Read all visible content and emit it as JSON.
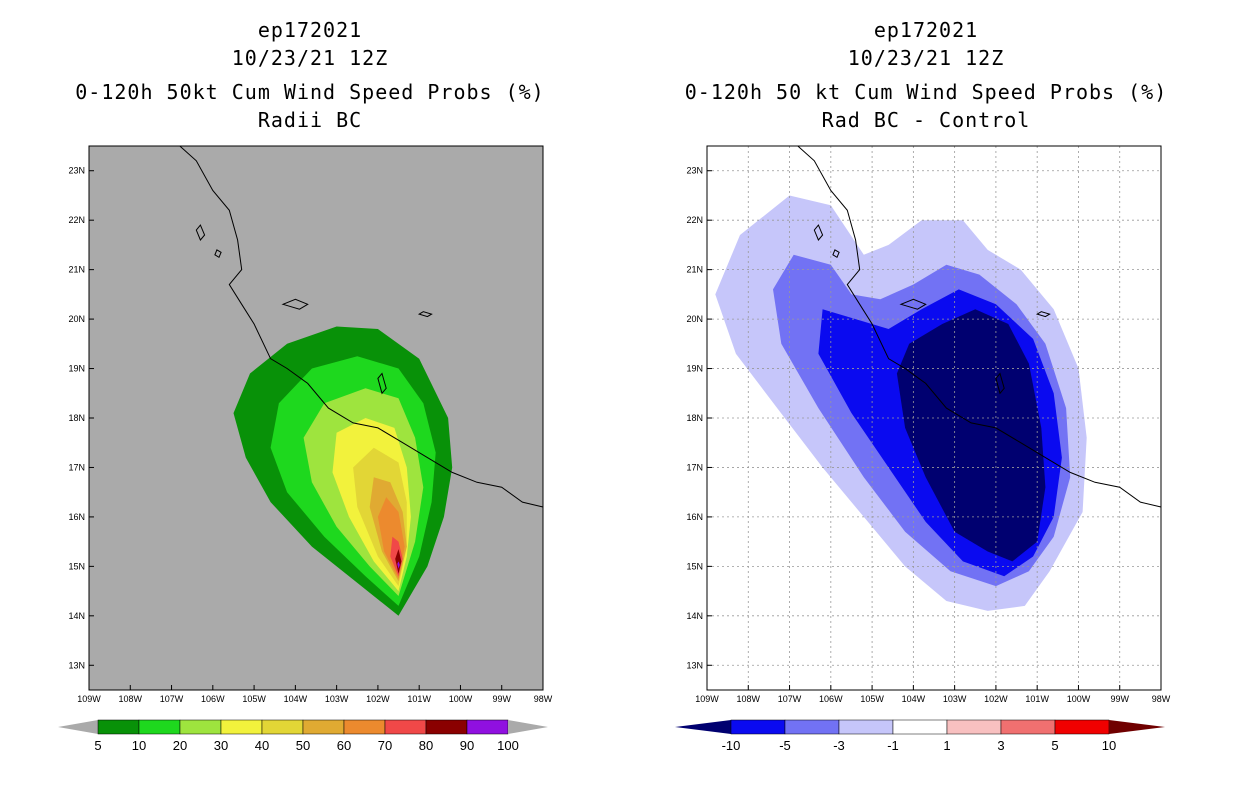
{
  "colors": {
    "ocean": "#aaaaaa",
    "p5": "#089108",
    "p10": "#1ed81e",
    "p20": "#9ee43e",
    "p30": "#f2f23c",
    "p40": "#e2d636",
    "p50": "#e0aa32",
    "p60": "#ec8a2e",
    "p70": "#f04848",
    "p80": "#8a0000",
    "p90": "#9010e0",
    "dm10": "#000070",
    "dm5": "#0a0af0",
    "dm3": "#7272f4",
    "dm1": "#c6c6fa"
  },
  "chart_data": [
    {
      "type": "contour",
      "title_lines": [
        "ep172021",
        "10/23/21 12Z",
        "0-120h 50kt Cum Wind Speed Probs (%)",
        "Radii BC"
      ],
      "xlabel": "",
      "ylabel": "",
      "lon_range": [
        -109,
        -98
      ],
      "lat_range": [
        12.5,
        23.5
      ],
      "x_tick_labels": [
        "109W",
        "108W",
        "107W",
        "106W",
        "105W",
        "104W",
        "103W",
        "102W",
        "101W",
        "100W",
        "99W",
        "98W"
      ],
      "y_tick_labels": [
        "13N",
        "14N",
        "15N",
        "16N",
        "17N",
        "18N",
        "19N",
        "20N",
        "21N",
        "22N",
        "23N"
      ],
      "grid": false,
      "colorbar": {
        "labels": [
          "5",
          "10",
          "20",
          "30",
          "40",
          "50",
          "60",
          "70",
          "80",
          "90",
          "100"
        ],
        "colors": [
          "#089108",
          "#1ed81e",
          "#9ee43e",
          "#f2f23c",
          "#e2d636",
          "#e0aa32",
          "#ec8a2e",
          "#f04848",
          "#8a0000",
          "#9010e0"
        ]
      },
      "max_center": {
        "lon": -101.5,
        "lat": 15.0,
        "value": 90
      }
    },
    {
      "type": "contour",
      "title_lines": [
        "ep172021",
        "10/23/21 12Z",
        "0-120h 50 kt Cum Wind Speed Probs (%)",
        "Rad BC - Control"
      ],
      "xlabel": "",
      "ylabel": "",
      "lon_range": [
        -109,
        -98
      ],
      "lat_range": [
        12.5,
        23.5
      ],
      "x_tick_labels": [
        "109W",
        "108W",
        "107W",
        "106W",
        "105W",
        "104W",
        "103W",
        "102W",
        "101W",
        "100W",
        "99W",
        "98W"
      ],
      "y_tick_labels": [
        "13N",
        "14N",
        "15N",
        "16N",
        "17N",
        "18N",
        "19N",
        "20N",
        "21N",
        "22N",
        "23N"
      ],
      "grid": true,
      "colorbar": {
        "labels": [
          "-10",
          "-5",
          "-3",
          "-1",
          "1",
          "3",
          "5",
          "10"
        ],
        "colors": [
          "#000070",
          "#0a0af0",
          "#7272f4",
          "#c6c6fa",
          "#ffffff",
          "#f8c0c0",
          "#f07070",
          "#f00000",
          "#700000"
        ]
      },
      "min_region": {
        "lon": -102.3,
        "lat": 17.5,
        "value": -10
      }
    }
  ]
}
